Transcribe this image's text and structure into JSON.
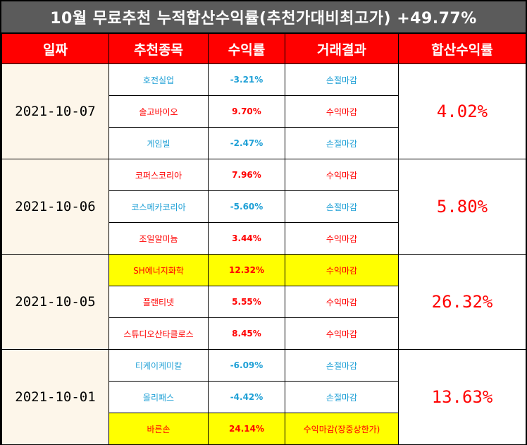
{
  "title": "10월 무료추천 누적합산수익률(추천가대비최고가) +49.77%",
  "headers": [
    "일짜",
    "추천종목",
    "수익률",
    "거래결과",
    "합산수익률"
  ],
  "colors": {
    "header_bg": "#ff0000",
    "title_bg": "#5b5b5b",
    "gain": "#ff0000",
    "loss": "#1fa0d6",
    "highlight": "#ffff00",
    "date_bg": "#fdf6ea"
  },
  "groups": [
    {
      "date": "2021-10-07",
      "total": "4.02%",
      "rows": [
        {
          "name": "호전실업",
          "rate": "-3.21%",
          "result": "손절마감",
          "tone": "blue",
          "highlight": false
        },
        {
          "name": "솔고바이오",
          "rate": "9.70%",
          "result": "수익마감",
          "tone": "red",
          "highlight": false
        },
        {
          "name": "게임빌",
          "rate": "-2.47%",
          "result": "손절마감",
          "tone": "blue",
          "highlight": false
        }
      ]
    },
    {
      "date": "2021-10-06",
      "total": "5.80%",
      "rows": [
        {
          "name": "코퍼스코리아",
          "rate": "7.96%",
          "result": "수익마감",
          "tone": "red",
          "highlight": false
        },
        {
          "name": "코스메카코리아",
          "rate": "-5.60%",
          "result": "손절마감",
          "tone": "blue",
          "highlight": false
        },
        {
          "name": "조일알미늄",
          "rate": "3.44%",
          "result": "수익마감",
          "tone": "red",
          "highlight": false
        }
      ]
    },
    {
      "date": "2021-10-05",
      "total": "26.32%",
      "rows": [
        {
          "name": "SH에너지화학",
          "rate": "12.32%",
          "result": "수익마감",
          "tone": "red",
          "highlight": true
        },
        {
          "name": "플랜티넷",
          "rate": "5.55%",
          "result": "수익마감",
          "tone": "red",
          "highlight": false
        },
        {
          "name": "스튜디오산타클로스",
          "rate": "8.45%",
          "result": "수익마감",
          "tone": "red",
          "highlight": false
        }
      ]
    },
    {
      "date": "2021-10-01",
      "total": "13.63%",
      "rows": [
        {
          "name": "티케이케미칼",
          "rate": "-6.09%",
          "result": "손절마감",
          "tone": "blue",
          "highlight": false
        },
        {
          "name": "올리패스",
          "rate": "-4.42%",
          "result": "손절마감",
          "tone": "blue",
          "highlight": false
        },
        {
          "name": "바른손",
          "rate": "24.14%",
          "result": "수익마감(장중상한가)",
          "tone": "red",
          "highlight": true
        }
      ]
    }
  ]
}
